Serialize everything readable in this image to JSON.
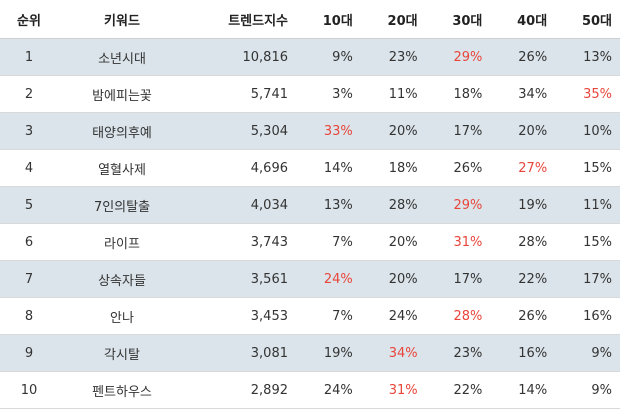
{
  "headers": [
    "순위",
    "키워드",
    "트렌드지수",
    "10대",
    "20대",
    "30대",
    "40대",
    "50대"
  ],
  "colors": {
    "shaded_row": "#dbe4ea",
    "highlight_text": "#e8463b",
    "text": "#333333"
  },
  "rows": [
    {
      "rank": "1",
      "keyword": "소년시대",
      "trend": "10,816",
      "ages": [
        "9%",
        "23%",
        "29%",
        "26%",
        "13%"
      ],
      "highlight": 2
    },
    {
      "rank": "2",
      "keyword": "밤에피는꽃",
      "trend": "5,741",
      "ages": [
        "3%",
        "11%",
        "18%",
        "34%",
        "35%"
      ],
      "highlight": 4
    },
    {
      "rank": "3",
      "keyword": "태양의후예",
      "trend": "5,304",
      "ages": [
        "33%",
        "20%",
        "17%",
        "20%",
        "10%"
      ],
      "highlight": 0
    },
    {
      "rank": "4",
      "keyword": "열혈사제",
      "trend": "4,696",
      "ages": [
        "14%",
        "18%",
        "26%",
        "27%",
        "15%"
      ],
      "highlight": 3
    },
    {
      "rank": "5",
      "keyword": "7인의탈출",
      "trend": "4,034",
      "ages": [
        "13%",
        "28%",
        "29%",
        "19%",
        "11%"
      ],
      "highlight": 2
    },
    {
      "rank": "6",
      "keyword": "라이프",
      "trend": "3,743",
      "ages": [
        "7%",
        "20%",
        "31%",
        "28%",
        "15%"
      ],
      "highlight": 2
    },
    {
      "rank": "7",
      "keyword": "상속자들",
      "trend": "3,561",
      "ages": [
        "24%",
        "20%",
        "17%",
        "22%",
        "17%"
      ],
      "highlight": 0
    },
    {
      "rank": "8",
      "keyword": "안나",
      "trend": "3,453",
      "ages": [
        "7%",
        "24%",
        "28%",
        "26%",
        "16%"
      ],
      "highlight": 2
    },
    {
      "rank": "9",
      "keyword": "각시탈",
      "trend": "3,081",
      "ages": [
        "19%",
        "34%",
        "23%",
        "16%",
        "9%"
      ],
      "highlight": 1
    },
    {
      "rank": "10",
      "keyword": "펜트하우스",
      "trend": "2,892",
      "ages": [
        "24%",
        "31%",
        "22%",
        "14%",
        "9%"
      ],
      "highlight": 1
    }
  ]
}
